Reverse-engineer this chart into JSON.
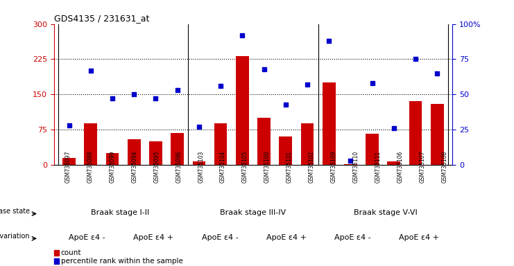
{
  "title": "GDS4135 / 231631_at",
  "samples": [
    "GSM735097",
    "GSM735098",
    "GSM735099",
    "GSM735094",
    "GSM735095",
    "GSM735096",
    "GSM735103",
    "GSM735104",
    "GSM735105",
    "GSM735100",
    "GSM735101",
    "GSM735102",
    "GSM735109",
    "GSM735110",
    "GSM735111",
    "GSM735106",
    "GSM735107",
    "GSM735108"
  ],
  "counts": [
    15,
    88,
    25,
    55,
    50,
    68,
    8,
    88,
    232,
    100,
    60,
    88,
    175,
    2,
    67,
    8,
    135,
    130
  ],
  "percentiles": [
    28,
    67,
    47,
    50,
    47,
    53,
    27,
    56,
    92,
    68,
    43,
    57,
    88,
    3,
    58,
    26,
    75,
    65
  ],
  "bar_color": "#cc0000",
  "dot_color": "#0000cc",
  "left_ylim": [
    0,
    300
  ],
  "right_ylim": [
    0,
    100
  ],
  "left_yticks": [
    0,
    75,
    150,
    225,
    300
  ],
  "right_yticks": [
    0,
    25,
    50,
    75,
    100
  ],
  "right_yticklabels": [
    "0",
    "25",
    "50",
    "75",
    "100%"
  ],
  "hlines": [
    75,
    150,
    225
  ],
  "disease_groups": [
    {
      "label": "Braak stage I-II",
      "start": 0,
      "end": 6,
      "color": "#bbffbb"
    },
    {
      "label": "Braak stage III-IV",
      "start": 6,
      "end": 12,
      "color": "#55dd55"
    },
    {
      "label": "Braak stage V-VI",
      "start": 12,
      "end": 18,
      "color": "#33bb33"
    }
  ],
  "genotype_groups": [
    {
      "label": "ApoE ε4 -",
      "start": 0,
      "end": 3,
      "color": "#cc55cc"
    },
    {
      "label": "ApoE ε4 +",
      "start": 3,
      "end": 6,
      "color": "#ff55ff"
    },
    {
      "label": "ApoE ε4 -",
      "start": 6,
      "end": 9,
      "color": "#cc55cc"
    },
    {
      "label": "ApoE ε4 +",
      "start": 9,
      "end": 12,
      "color": "#ff55ff"
    },
    {
      "label": "ApoE ε4 -",
      "start": 12,
      "end": 15,
      "color": "#cc55cc"
    },
    {
      "label": "ApoE ε4 +",
      "start": 15,
      "end": 18,
      "color": "#ff55ff"
    }
  ],
  "bar_color_legend": "#cc0000",
  "dot_color_legend": "#0000cc",
  "axis_color_left": "#cc0000",
  "axis_color_right": "#0000cc",
  "bg_color": "#ffffff",
  "tick_bg_color": "#d8d8d8"
}
